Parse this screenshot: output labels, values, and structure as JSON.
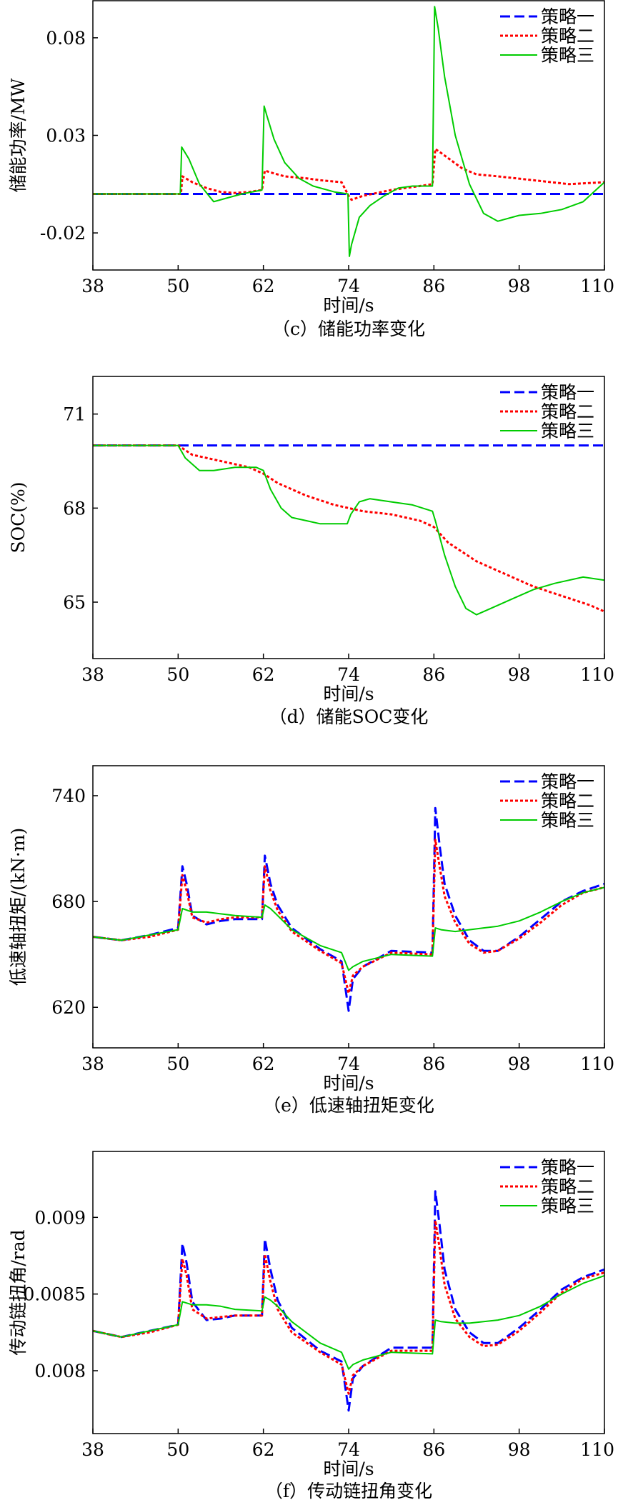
{
  "legend_colors": {
    "s1": "#0000ff",
    "s2": "#ff0000",
    "s3": "#00cc00"
  },
  "chart_data": [
    {
      "id": "c",
      "type": "line",
      "caption": "（c）储能功率变化",
      "xlabel": "时间/s",
      "ylabel": "储能功率/MW",
      "xlim": [
        38,
        110
      ],
      "ylim": [
        -0.039,
        0.099
      ],
      "xticks": [
        38,
        50,
        62,
        74,
        86,
        98,
        110
      ],
      "yticks": [
        -0.02,
        0.03,
        0.08
      ],
      "ytick_labels": [
        "-0.02",
        "0.03",
        "0.08"
      ],
      "legend_position": "top-right",
      "series": [
        {
          "name": "策略一",
          "style": "dash-blue",
          "x": [
            38,
            110
          ],
          "y": [
            0,
            0
          ]
        },
        {
          "name": "策略二",
          "style": "dot-red",
          "x": [
            38,
            50.4,
            50.6,
            52,
            54,
            56,
            58,
            60,
            61.8,
            62.2,
            63,
            65,
            68,
            70,
            73,
            74,
            74.4,
            76,
            80,
            84,
            85.8,
            86.2,
            87,
            88.5,
            90,
            92,
            95,
            100,
            105,
            110
          ],
          "y": [
            0,
            0,
            0.009,
            0.006,
            0.003,
            0.001,
            0.0005,
            0.001,
            0.002,
            0.012,
            0.011,
            0.009,
            0.008,
            0.007,
            0.006,
            -0.001,
            -0.003,
            -0.001,
            0.002,
            0.004,
            0.005,
            0.023,
            0.021,
            0.017,
            0.013,
            0.01,
            0.009,
            0.007,
            0.005,
            0.006
          ]
        },
        {
          "name": "策略三",
          "style": "solid-green",
          "x": [
            38,
            50.3,
            50.5,
            51.5,
            53,
            55,
            57,
            59,
            61.8,
            62.1,
            62.5,
            63.5,
            65,
            67,
            69,
            72,
            73.9,
            74.1,
            74.4,
            75.5,
            77,
            79,
            81,
            83,
            85.8,
            86.1,
            86.6,
            87.5,
            89,
            91,
            93,
            95,
            98,
            101,
            104,
            107,
            110
          ],
          "y": [
            0,
            0,
            0.024,
            0.018,
            0.005,
            -0.004,
            -0.002,
            0,
            0.002,
            0.045,
            0.04,
            0.028,
            0.016,
            0.008,
            0.004,
            0.001,
            0,
            -0.032,
            -0.026,
            -0.012,
            -0.006,
            -0.001,
            0.003,
            0.004,
            0.004,
            0.096,
            0.085,
            0.06,
            0.03,
            0.005,
            -0.01,
            -0.014,
            -0.011,
            -0.01,
            -0.008,
            -0.004,
            0.006
          ]
        }
      ]
    },
    {
      "id": "d",
      "type": "line",
      "caption": "（d）储能SOC变化",
      "xlabel": "时间/s",
      "ylabel": "SOC(%)",
      "xlim": [
        38,
        110
      ],
      "ylim": [
        63.2,
        72.2
      ],
      "xticks": [
        38,
        50,
        62,
        74,
        86,
        98,
        110
      ],
      "yticks": [
        65,
        68,
        71
      ],
      "ytick_labels": [
        "65",
        "68",
        "71"
      ],
      "legend_position": "top-right",
      "series": [
        {
          "name": "策略一",
          "style": "dash-blue",
          "x": [
            38,
            110
          ],
          "y": [
            70,
            70
          ]
        },
        {
          "name": "策略二",
          "style": "dot-red",
          "x": [
            38,
            50,
            52,
            56,
            60,
            62,
            64,
            68,
            72,
            76,
            80,
            84,
            86,
            88,
            92,
            96,
            100,
            104,
            108,
            110
          ],
          "y": [
            70,
            70,
            69.7,
            69.5,
            69.3,
            69.1,
            68.8,
            68.4,
            68.1,
            67.9,
            67.8,
            67.6,
            67.4,
            66.9,
            66.3,
            65.9,
            65.5,
            65.2,
            64.9,
            64.7
          ]
        },
        {
          "name": "策略三",
          "style": "solid-green",
          "x": [
            38,
            50,
            51,
            53,
            55,
            58,
            61,
            62,
            63,
            64.5,
            66,
            68,
            70,
            73.8,
            74.3,
            75.5,
            77,
            80,
            83,
            85.8,
            86.2,
            87.5,
            89,
            90.5,
            92,
            94,
            97,
            100,
            103,
            107,
            110
          ],
          "y": [
            70,
            70,
            69.6,
            69.2,
            69.2,
            69.3,
            69.3,
            69.2,
            68.6,
            68.0,
            67.7,
            67.6,
            67.5,
            67.5,
            67.8,
            68.2,
            68.3,
            68.2,
            68.1,
            67.9,
            67.6,
            66.5,
            65.5,
            64.8,
            64.6,
            64.8,
            65.1,
            65.4,
            65.6,
            65.8,
            65.7
          ]
        }
      ]
    },
    {
      "id": "e",
      "type": "line",
      "caption": "（e）低速轴扭矩变化",
      "xlabel": "时间/s",
      "ylabel": "低速轴扭矩/(kN·m)",
      "xlim": [
        38,
        110
      ],
      "ylim": [
        597,
        757
      ],
      "xticks": [
        38,
        50,
        62,
        74,
        86,
        98,
        110
      ],
      "yticks": [
        620,
        680,
        740
      ],
      "ytick_labels": [
        "620",
        "680",
        "740"
      ],
      "legend_position": "top-right",
      "series": [
        {
          "name": "策略一",
          "style": "dash-blue",
          "x": [
            38,
            42,
            46,
            50,
            50.6,
            51.2,
            52,
            54,
            56,
            58,
            61.8,
            62.2,
            63,
            64,
            66,
            70,
            73,
            74,
            74.6,
            76,
            80,
            85.8,
            86.2,
            86.8,
            87.5,
            89,
            91,
            93,
            95,
            98,
            101,
            104,
            107,
            110
          ],
          "y": [
            660,
            658,
            661,
            665,
            700,
            690,
            672,
            667,
            669,
            670,
            670,
            706,
            690,
            678,
            665,
            653,
            646,
            618,
            636,
            643,
            652,
            651,
            733,
            712,
            690,
            672,
            658,
            652,
            652,
            660,
            670,
            680,
            686,
            690
          ]
        },
        {
          "name": "策略二",
          "style": "dot-red",
          "x": [
            38,
            42,
            46,
            50,
            50.6,
            51.2,
            52,
            54,
            56,
            58,
            61.8,
            62.2,
            63,
            64,
            66,
            70,
            73,
            74,
            74.6,
            76,
            80,
            85.8,
            86.2,
            86.8,
            87.5,
            89,
            91,
            93,
            95,
            98,
            101,
            104,
            107,
            110
          ],
          "y": [
            660,
            658,
            660,
            664,
            695,
            686,
            671,
            668,
            670,
            671,
            671,
            700,
            686,
            675,
            663,
            652,
            645,
            628,
            638,
            643,
            651,
            650,
            715,
            700,
            683,
            668,
            656,
            651,
            652,
            659,
            668,
            678,
            685,
            688
          ]
        },
        {
          "name": "策略三",
          "style": "solid-green",
          "x": [
            38,
            42,
            46,
            50,
            50.6,
            52,
            54,
            56,
            58,
            61.8,
            62.2,
            63,
            64,
            66,
            70,
            73,
            74,
            74.6,
            76,
            80,
            85.8,
            86.2,
            87,
            89,
            91,
            93,
            95,
            98,
            101,
            104,
            107,
            110
          ],
          "y": [
            660,
            658,
            661,
            664,
            676,
            674,
            674,
            673,
            672,
            671,
            678,
            676,
            672,
            664,
            655,
            651,
            641,
            643,
            646,
            650,
            649,
            665,
            664,
            663,
            664,
            665,
            666,
            669,
            674,
            680,
            685,
            688
          ]
        }
      ]
    },
    {
      "id": "f",
      "type": "line",
      "caption": "（f）传动链扭角变化",
      "xlabel": "时间/s",
      "ylabel": "传动链扭角/rad",
      "xlim": [
        38,
        110
      ],
      "ylim": [
        0.00759,
        0.00943
      ],
      "xticks": [
        38,
        50,
        62,
        74,
        86,
        98,
        110
      ],
      "yticks": [
        0.008,
        0.0085,
        0.009
      ],
      "ytick_labels": [
        "0.008",
        "0.0085",
        "0.009"
      ],
      "legend_position": "top-right",
      "series": [
        {
          "name": "策略一",
          "style": "dash-blue",
          "x": [
            38,
            42,
            46,
            50,
            50.6,
            51.2,
            52,
            54,
            56,
            58,
            61.8,
            62.2,
            63,
            64,
            66,
            70,
            73,
            74,
            74.6,
            76,
            80,
            85.8,
            86.2,
            86.8,
            87.5,
            89,
            91,
            93,
            95,
            98,
            101,
            104,
            107,
            110
          ],
          "y": [
            0.00826,
            0.00822,
            0.00826,
            0.0083,
            0.00883,
            0.0087,
            0.00845,
            0.00833,
            0.00834,
            0.00836,
            0.00836,
            0.00886,
            0.00866,
            0.00846,
            0.00828,
            0.00813,
            0.00806,
            0.00774,
            0.00795,
            0.00803,
            0.00815,
            0.00815,
            0.00917,
            0.00895,
            0.00866,
            0.0084,
            0.00825,
            0.00818,
            0.00818,
            0.00828,
            0.0084,
            0.00853,
            0.00861,
            0.00866
          ]
        },
        {
          "name": "策略二",
          "style": "dot-red",
          "x": [
            38,
            42,
            46,
            50,
            50.6,
            51.2,
            52,
            54,
            56,
            58,
            61.8,
            62.2,
            63,
            64,
            66,
            70,
            73,
            74,
            74.6,
            76,
            80,
            85.8,
            86.2,
            86.8,
            87.5,
            89,
            91,
            93,
            95,
            98,
            101,
            104,
            107,
            110
          ],
          "y": [
            0.00826,
            0.00822,
            0.00825,
            0.0083,
            0.00873,
            0.00862,
            0.0084,
            0.00834,
            0.00835,
            0.00836,
            0.00836,
            0.00876,
            0.00858,
            0.0084,
            0.00825,
            0.00812,
            0.00804,
            0.00785,
            0.00797,
            0.00803,
            0.00813,
            0.00813,
            0.00898,
            0.0088,
            0.00856,
            0.00834,
            0.00822,
            0.00816,
            0.00817,
            0.00826,
            0.00838,
            0.00851,
            0.0086,
            0.00864
          ]
        },
        {
          "name": "策略三",
          "style": "solid-green",
          "x": [
            38,
            42,
            46,
            50,
            50.6,
            52,
            54,
            56,
            58,
            61.8,
            62.2,
            63,
            64,
            66,
            70,
            73,
            74,
            74.6,
            76,
            80,
            85.8,
            86.2,
            87,
            89,
            91,
            93,
            95,
            98,
            101,
            104,
            107,
            110
          ],
          "y": [
            0.00826,
            0.00822,
            0.00826,
            0.0083,
            0.00845,
            0.00843,
            0.00843,
            0.00842,
            0.0084,
            0.00839,
            0.00848,
            0.00846,
            0.00842,
            0.00832,
            0.00818,
            0.00812,
            0.00801,
            0.00804,
            0.00807,
            0.00812,
            0.00811,
            0.00833,
            0.00832,
            0.00831,
            0.00831,
            0.00832,
            0.00833,
            0.00836,
            0.00842,
            0.0085,
            0.00857,
            0.00862
          ]
        }
      ]
    }
  ]
}
